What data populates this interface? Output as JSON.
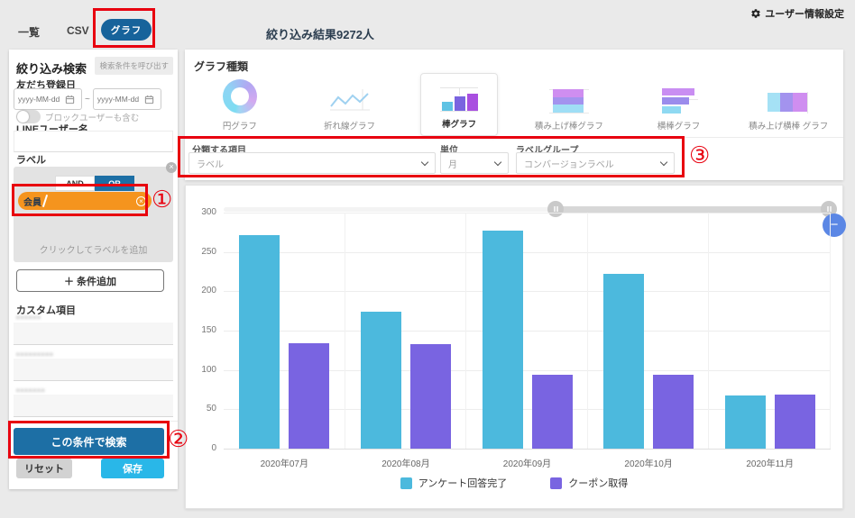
{
  "top": {
    "settings_link": "ユーザー情報設定",
    "tabs": [
      {
        "label": "一覧"
      },
      {
        "label": "CSV"
      },
      {
        "label": "グラフ",
        "active": true
      }
    ],
    "result_summary": "絞り込み結果9272人"
  },
  "sidebar": {
    "title": "絞り込み検索",
    "recall_button": "検索条件を呼び出す",
    "friend_date_label": "友だち登録日",
    "date_from_placeholder": "yyyy-MM-dd",
    "date_to_placeholder": "yyyy-MM-dd",
    "date_separator": "~",
    "block_toggle_label": "ブロックユーザーも含む",
    "line_username_label": "LINEユーザー名",
    "label_section_label": "ラベル",
    "and_label": "AND",
    "or_label": "OR",
    "member_tag": "会員",
    "add_label_hint": "クリックしてラベルを追加",
    "add_condition_button": "＋ 条件追加",
    "custom_section_label": "カスタム項目",
    "custom_fields": [
      {
        "masked_label": "●●●●●●"
      },
      {
        "masked_label": "●●●●●●●●●"
      },
      {
        "masked_label": "●●●●●●●"
      }
    ],
    "search_button": "この条件で検索",
    "reset_button": "リセット",
    "save_button": "保存"
  },
  "graph_panel": {
    "section_label": "グラフ種類",
    "types": [
      {
        "label": "円グラフ"
      },
      {
        "label": "折れ線グラフ"
      },
      {
        "label": "棒グラフ",
        "selected": true
      },
      {
        "label": "積み上げ棒グラフ"
      },
      {
        "label": "横棒グラフ"
      },
      {
        "label": "積み上げ横棒 グラフ"
      }
    ],
    "filters": [
      {
        "label": "分類する項目",
        "value": "ラベル"
      },
      {
        "label": "単位",
        "value": "月"
      },
      {
        "label": "ラベルグループ",
        "value": "コンバージョンラベル"
      }
    ]
  },
  "annotations": {
    "one": "①",
    "two": "②",
    "three": "③"
  },
  "icons": {
    "close": "×",
    "minus": "−"
  },
  "chart_data": {
    "type": "bar",
    "categories": [
      "2020年07月",
      "2020年08月",
      "2020年09月",
      "2020年10月",
      "2020年11月"
    ],
    "series": [
      {
        "name": "アンケート回答完了",
        "color": "#4cb9dd",
        "values": [
          271,
          174,
          277,
          222,
          68
        ]
      },
      {
        "name": "クーポン取得",
        "color": "#7964e1",
        "values": [
          134,
          133,
          94,
          94,
          69
        ]
      }
    ],
    "title": "",
    "xlabel": "",
    "ylabel": "",
    "ylim": [
      0,
      300
    ],
    "ytick_step": 50,
    "grid": true,
    "legend_position": "bottom"
  }
}
